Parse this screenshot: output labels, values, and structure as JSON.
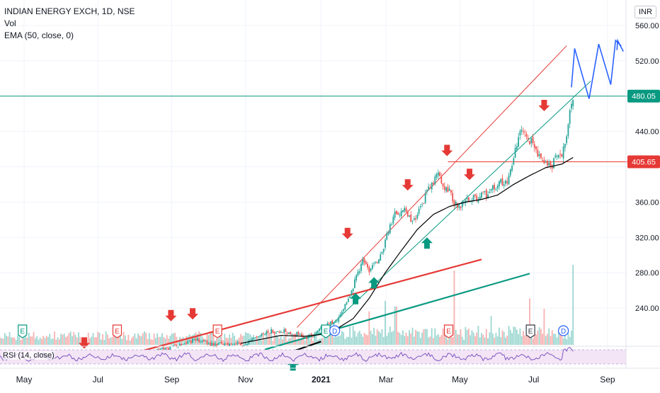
{
  "header": {
    "symbol_line": "INDIAN ENERGY EXCH, 1D, NSE",
    "vol_label": "Vol",
    "ema_label": "EMA (50, close, 0)",
    "currency": "INR"
  },
  "rsi": {
    "label": "RSI (14, close)"
  },
  "colors": {
    "up": "#26a69a",
    "down": "#ef5350",
    "ema": "#000000",
    "red_line": "#e53935",
    "teal_line": "#089981",
    "blue_path": "#2962ff",
    "rsi_line": "#7e57c2",
    "rsi_band": "#f3e5f5"
  },
  "chart_data": {
    "type": "candlestick",
    "title": "INDIAN ENERGY EXCH, 1D, NSE",
    "y_axis": {
      "ticks": [
        240,
        280,
        320,
        360,
        400,
        440,
        480,
        520,
        560
      ],
      "tick_labels": [
        "240.00",
        "280.00",
        "320.00",
        "360.00",
        "",
        "440.00",
        "",
        "520.00",
        "560.00"
      ],
      "range": [
        172,
        572
      ]
    },
    "x_axis": {
      "labels": [
        "May",
        "Jul",
        "Sep",
        "Nov",
        "2021",
        "Mar",
        "May",
        "Jul",
        "Sep"
      ],
      "label_days": [
        30,
        122,
        214,
        306,
        400,
        481,
        573,
        665,
        757
      ]
    },
    "price_labels": [
      {
        "value": 480.05,
        "text": "480.05",
        "color": "#089981"
      },
      {
        "value": 405.65,
        "text": "405.65",
        "color": "#e53935"
      }
    ],
    "close_anchors": [
      [
        0,
        185
      ],
      [
        60,
        186
      ],
      [
        120,
        187
      ],
      [
        150,
        186
      ],
      [
        180,
        188
      ],
      [
        200,
        192
      ],
      [
        214,
        196
      ],
      [
        230,
        201
      ],
      [
        245,
        204
      ],
      [
        260,
        200
      ],
      [
        275,
        199
      ],
      [
        290,
        200
      ],
      [
        306,
        199
      ],
      [
        320,
        206
      ],
      [
        335,
        213
      ],
      [
        350,
        215
      ],
      [
        365,
        212
      ],
      [
        380,
        207
      ],
      [
        392,
        210
      ],
      [
        400,
        219
      ],
      [
        410,
        221
      ],
      [
        420,
        228
      ],
      [
        430,
        244
      ],
      [
        440,
        264
      ],
      [
        452,
        295
      ],
      [
        460,
        282
      ],
      [
        468,
        292
      ],
      [
        476,
        303
      ],
      [
        484,
        328
      ],
      [
        492,
        347
      ],
      [
        502,
        352
      ],
      [
        514,
        335
      ],
      [
        524,
        355
      ],
      [
        534,
        374
      ],
      [
        546,
        393
      ],
      [
        553,
        377
      ],
      [
        560,
        372
      ],
      [
        570,
        353
      ],
      [
        582,
        361
      ],
      [
        596,
        366
      ],
      [
        608,
        370
      ],
      [
        620,
        380
      ],
      [
        632,
        386
      ],
      [
        642,
        418
      ],
      [
        650,
        441
      ],
      [
        662,
        428
      ],
      [
        672,
        414
      ],
      [
        680,
        406
      ],
      [
        688,
        398
      ],
      [
        692,
        412
      ],
      [
        700,
        415
      ],
      [
        706,
        438
      ],
      [
        711,
        473
      ],
      [
        715,
        480.05
      ]
    ],
    "ema_anchors": [
      [
        300,
        200
      ],
      [
        350,
        209
      ],
      [
        380,
        208
      ],
      [
        410,
        211
      ],
      [
        440,
        228
      ],
      [
        460,
        251
      ],
      [
        480,
        280
      ],
      [
        500,
        305
      ],
      [
        520,
        329
      ],
      [
        540,
        346
      ],
      [
        560,
        355
      ],
      [
        580,
        360
      ],
      [
        600,
        363
      ],
      [
        620,
        368
      ],
      [
        640,
        380
      ],
      [
        660,
        390
      ],
      [
        680,
        399
      ],
      [
        700,
        403
      ],
      [
        715,
        411
      ]
    ],
    "trendlines": [
      {
        "color": "#e53935",
        "width": 1,
        "points": [
          [
            370,
            218
          ],
          [
            706,
            537
          ]
        ]
      },
      {
        "color": "#089981",
        "width": 1,
        "points": [
          [
            400,
            210
          ],
          [
            736,
            497
          ]
        ]
      },
      {
        "color": "#e53935",
        "width": 2.2,
        "points": [
          [
            175,
            191
          ],
          [
            600,
            295
          ]
        ]
      },
      {
        "color": "#089981",
        "width": 2.2,
        "points": [
          [
            330,
            193
          ],
          [
            660,
            279
          ]
        ]
      },
      {
        "color": "#000000",
        "width": 2.2,
        "points": [
          [
            330,
            180
          ],
          [
            400,
            202
          ]
        ]
      },
      {
        "color": "#e53935",
        "width": 1,
        "points": [
          [
            558,
            405.65
          ],
          [
            800,
            405.65
          ]
        ]
      },
      {
        "color": "#089981",
        "width": 1,
        "points": [
          [
            0,
            480.05
          ],
          [
            800,
            480.05
          ]
        ]
      }
    ],
    "forecast_path": [
      [
        712,
        490
      ],
      [
        716,
        534
      ],
      [
        734,
        477
      ],
      [
        746,
        539
      ],
      [
        761,
        493
      ],
      [
        767,
        543
      ],
      [
        774,
        537
      ]
    ],
    "down_arrows": [
      {
        "day": 105,
        "value": 194
      },
      {
        "day": 213,
        "value": 225
      },
      {
        "day": 240,
        "value": 227
      },
      {
        "day": 433,
        "value": 318
      },
      {
        "day": 508,
        "value": 373
      },
      {
        "day": 557,
        "value": 412
      },
      {
        "day": 585,
        "value": 385
      },
      {
        "day": 678,
        "value": 463
      }
    ],
    "up_arrows": [
      {
        "day": 365,
        "value": 182
      },
      {
        "day": 443,
        "value": 257
      },
      {
        "day": 466,
        "value": 275
      },
      {
        "day": 532,
        "value": 320
      }
    ],
    "events": [
      {
        "day": 28,
        "letter": "E",
        "kind": "earnings-green"
      },
      {
        "day": 146,
        "letter": "E",
        "kind": "earnings-red"
      },
      {
        "day": 271,
        "letter": "E",
        "kind": "earnings-red"
      },
      {
        "day": 406,
        "letter": "E",
        "kind": "earnings-green"
      },
      {
        "day": 417,
        "letter": "D",
        "kind": "dividend"
      },
      {
        "day": 559,
        "letter": "E",
        "kind": "earnings-red"
      },
      {
        "day": 661,
        "letter": "E",
        "kind": "earnings-dark"
      },
      {
        "day": 702,
        "letter": "D",
        "kind": "dividend"
      }
    ],
    "volume_spikes": [
      {
        "day": 566,
        "ratio": 0.93
      },
      {
        "day": 660,
        "ratio": 0.58
      },
      {
        "day": 678,
        "ratio": 0.45
      },
      {
        "day": 715,
        "ratio": 1.0
      },
      {
        "day": 480,
        "ratio": 0.55
      },
      {
        "day": 493,
        "ratio": 0.48
      },
      {
        "day": 460,
        "ratio": 0.42
      },
      {
        "day": 612,
        "ratio": 0.36
      }
    ]
  }
}
